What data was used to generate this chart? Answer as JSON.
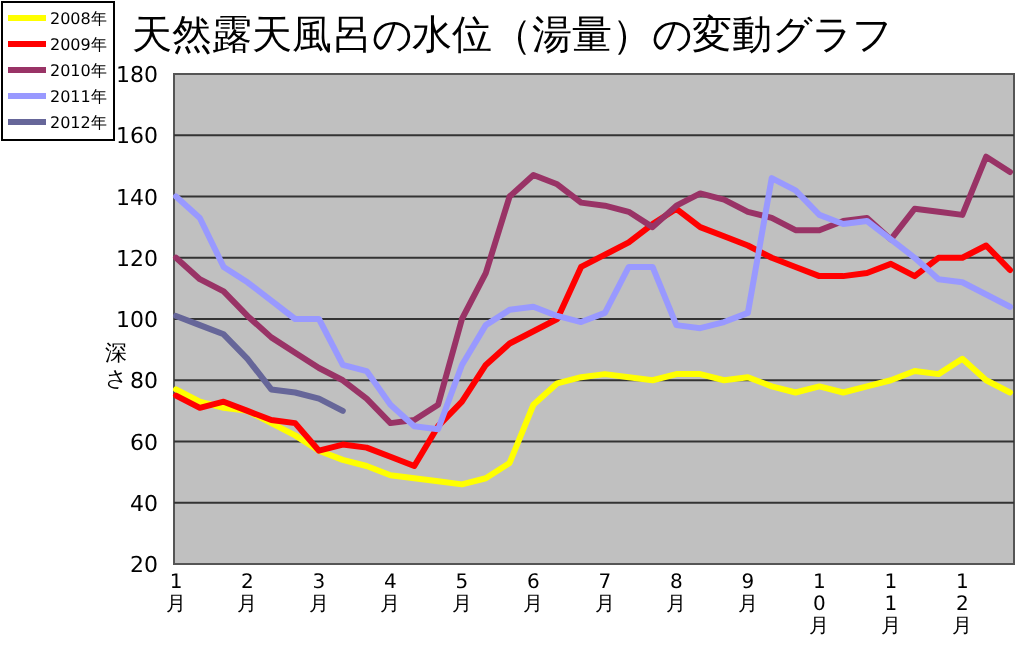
{
  "chart_data": {
    "type": "line",
    "title": "天然露天風呂の水位（湯量）の変動グラフ",
    "ylabel": "深さ",
    "categories": [
      "1月",
      null,
      null,
      "2月",
      null,
      null,
      "3月",
      null,
      null,
      "4月",
      null,
      null,
      "5月",
      null,
      null,
      "6月",
      null,
      null,
      "7月",
      null,
      null,
      "8月",
      null,
      null,
      "9月",
      null,
      null,
      "10月",
      null,
      null,
      "11月",
      null,
      null,
      "12月",
      null,
      null
    ],
    "ylim": [
      20,
      180
    ],
    "yticks": [
      20,
      40,
      60,
      80,
      100,
      120,
      140,
      160,
      180
    ],
    "grid": "y",
    "legend": "top left",
    "marker": "none",
    "line_style": "solid",
    "series": [
      {
        "name": "2008年",
        "color": "#ffff00",
        "values": [
          77,
          73,
          71,
          70,
          66,
          62,
          57,
          54,
          52,
          49,
          48,
          47,
          46,
          48,
          53,
          72,
          79,
          81,
          82,
          81,
          80,
          82,
          82,
          80,
          81,
          78,
          76,
          78,
          76,
          78,
          80,
          83,
          82,
          87,
          80,
          76
        ]
      },
      {
        "name": "2009年",
        "color": "#ff0000",
        "values": [
          75,
          71,
          73,
          70,
          67,
          66,
          57,
          59,
          58,
          55,
          52,
          65,
          73,
          85,
          92,
          96,
          100,
          117,
          121,
          125,
          131,
          136,
          130,
          127,
          124,
          120,
          117,
          114,
          114,
          115,
          118,
          114,
          120,
          120,
          124,
          116
        ]
      },
      {
        "name": "2010年",
        "color": "#993366",
        "values": [
          120,
          113,
          109,
          101,
          94,
          89,
          84,
          80,
          74,
          66,
          67,
          72,
          100,
          115,
          140,
          147,
          144,
          138,
          137,
          135,
          130,
          137,
          141,
          139,
          135,
          133,
          129,
          129,
          132,
          133,
          126,
          136,
          135,
          134,
          153,
          148
        ]
      },
      {
        "name": "2011年",
        "color": "#9999ff",
        "values": [
          140,
          133,
          117,
          112,
          106,
          100,
          100,
          85,
          83,
          72,
          65,
          64,
          85,
          98,
          103,
          104,
          101,
          99,
          102,
          117,
          117,
          98,
          97,
          99,
          102,
          146,
          142,
          134,
          131,
          132,
          126,
          120,
          113,
          112,
          108,
          104
        ]
      },
      {
        "name": "2012年",
        "color": "#666699",
        "values": [
          101,
          98,
          95,
          87,
          77,
          76,
          74,
          70,
          null,
          null,
          null,
          null,
          null,
          null,
          null,
          null,
          null,
          null,
          null,
          null,
          null,
          null,
          null,
          null,
          null,
          null,
          null,
          null,
          null,
          null,
          null,
          null,
          null,
          null,
          null,
          null
        ]
      }
    ]
  }
}
